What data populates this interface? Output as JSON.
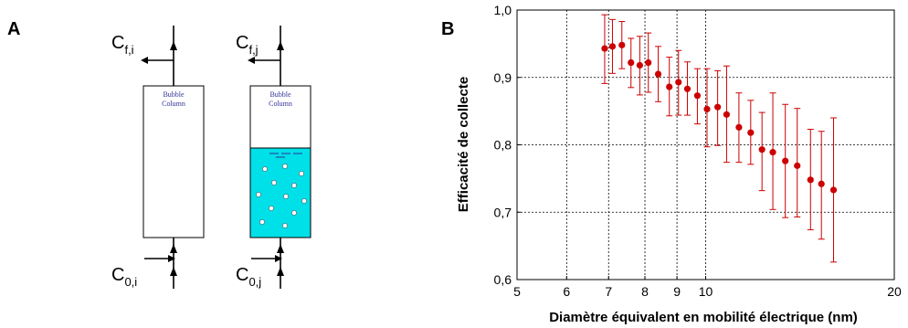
{
  "panel_a": {
    "letter": "A",
    "column_label_line1": "Bubble",
    "column_label_line2": "Column",
    "columns": [
      {
        "outlet_label": "C",
        "outlet_sub": "f,i",
        "inlet_label": "C",
        "inlet_sub": "0,i",
        "liquid_fill": false
      },
      {
        "outlet_label": "C",
        "outlet_sub": "f,j",
        "inlet_label": "C",
        "inlet_sub": "0,j",
        "liquid_fill": true
      }
    ],
    "colors": {
      "liquid": "#00e0e8",
      "bubble": "#ffffff",
      "stroke": "#000000",
      "label": "#333399"
    }
  },
  "chart_data": {
    "panel": "B",
    "type": "scatter",
    "xlabel": "Diamètre équivalent en mobilité électrique (nm)",
    "ylabel": "Efficacité de collecte",
    "xscale": "log",
    "xlim": [
      5,
      20
    ],
    "ylim": [
      0.6,
      1.0
    ],
    "xticks": [
      5,
      6,
      7,
      8,
      9,
      10,
      20
    ],
    "xtick_labels": [
      "5",
      "6",
      "7",
      "8",
      "9",
      "10",
      "20"
    ],
    "yticks": [
      0.6,
      0.7,
      0.8,
      0.9,
      1.0
    ],
    "ytick_labels": [
      "0,6",
      "0,7",
      "0,8",
      "0,9",
      "1,0"
    ],
    "grid": true,
    "grid_x_at": [
      6,
      7,
      8,
      9,
      10
    ],
    "grid_y_at": [
      0.7,
      0.8,
      0.9
    ],
    "marker_color": "#cc0000",
    "errorbar_color": "#cc0000",
    "series": [
      {
        "points": [
          {
            "x": 6.9,
            "y": 0.943,
            "ylow": 0.891,
            "yhigh": 0.993
          },
          {
            "x": 7.1,
            "y": 0.946,
            "ylow": 0.906,
            "yhigh": 0.986
          },
          {
            "x": 7.35,
            "y": 0.948,
            "ylow": 0.913,
            "yhigh": 0.983
          },
          {
            "x": 7.6,
            "y": 0.922,
            "ylow": 0.885,
            "yhigh": 0.958
          },
          {
            "x": 7.85,
            "y": 0.918,
            "ylow": 0.874,
            "yhigh": 0.961
          },
          {
            "x": 8.1,
            "y": 0.922,
            "ylow": 0.878,
            "yhigh": 0.966
          },
          {
            "x": 8.4,
            "y": 0.905,
            "ylow": 0.864,
            "yhigh": 0.946
          },
          {
            "x": 8.75,
            "y": 0.886,
            "ylow": 0.843,
            "yhigh": 0.93
          },
          {
            "x": 9.05,
            "y": 0.893,
            "ylow": 0.844,
            "yhigh": 0.94
          },
          {
            "x": 9.35,
            "y": 0.883,
            "ylow": 0.844,
            "yhigh": 0.923
          },
          {
            "x": 9.7,
            "y": 0.873,
            "ylow": 0.831,
            "yhigh": 0.913
          },
          {
            "x": 10.05,
            "y": 0.853,
            "ylow": 0.797,
            "yhigh": 0.913
          },
          {
            "x": 10.45,
            "y": 0.856,
            "ylow": 0.799,
            "yhigh": 0.91
          },
          {
            "x": 10.8,
            "y": 0.845,
            "ylow": 0.774,
            "yhigh": 0.917
          },
          {
            "x": 11.3,
            "y": 0.826,
            "ylow": 0.774,
            "yhigh": 0.877
          },
          {
            "x": 11.8,
            "y": 0.818,
            "ylow": 0.771,
            "yhigh": 0.866
          },
          {
            "x": 12.3,
            "y": 0.793,
            "ylow": 0.732,
            "yhigh": 0.848
          },
          {
            "x": 12.8,
            "y": 0.789,
            "ylow": 0.704,
            "yhigh": 0.877
          },
          {
            "x": 13.4,
            "y": 0.776,
            "ylow": 0.692,
            "yhigh": 0.86
          },
          {
            "x": 14.0,
            "y": 0.769,
            "ylow": 0.693,
            "yhigh": 0.854
          },
          {
            "x": 14.7,
            "y": 0.748,
            "ylow": 0.674,
            "yhigh": 0.823
          },
          {
            "x": 15.3,
            "y": 0.742,
            "ylow": 0.66,
            "yhigh": 0.82
          },
          {
            "x": 16.0,
            "y": 0.733,
            "ylow": 0.626,
            "yhigh": 0.84
          }
        ]
      }
    ]
  }
}
